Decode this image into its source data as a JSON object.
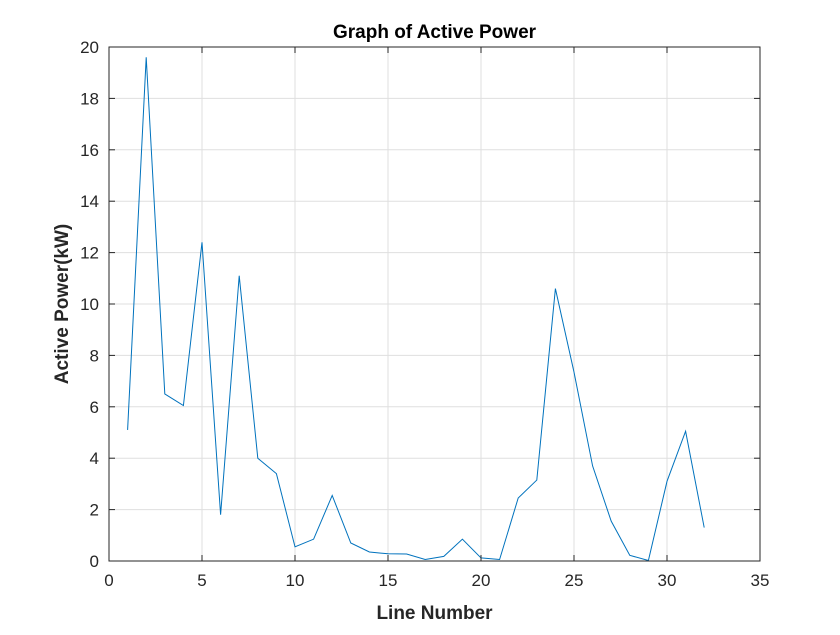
{
  "chart_data": {
    "type": "line",
    "title": "Graph of Active Power",
    "xlabel": "Line Number",
    "ylabel": "Active Power(kW)",
    "xlim": [
      0,
      35
    ],
    "ylim": [
      0,
      20
    ],
    "xticks": [
      "0",
      "5",
      "10",
      "15",
      "20",
      "25",
      "30",
      "35"
    ],
    "yticks": [
      "0",
      "2",
      "4",
      "6",
      "8",
      "10",
      "12",
      "14",
      "16",
      "18",
      "20"
    ],
    "grid": true,
    "line_color": "#0072BD",
    "series": [
      {
        "x": [
          1,
          2,
          3,
          4,
          5,
          6,
          7,
          8,
          9,
          10,
          11,
          12,
          13,
          14,
          15,
          16,
          17,
          18,
          19,
          20,
          21,
          22,
          23,
          24,
          25,
          26,
          27,
          28,
          29,
          30,
          31,
          32
        ],
        "values": [
          5.1,
          19.6,
          6.5,
          6.05,
          12.4,
          1.8,
          11.1,
          4.0,
          3.4,
          0.55,
          0.85,
          2.55,
          0.7,
          0.35,
          0.28,
          0.27,
          0.06,
          0.18,
          0.85,
          0.12,
          0.06,
          2.45,
          3.15,
          10.6,
          7.35,
          3.7,
          1.55,
          0.22,
          0.02,
          3.1,
          5.05,
          1.3
        ]
      }
    ]
  }
}
